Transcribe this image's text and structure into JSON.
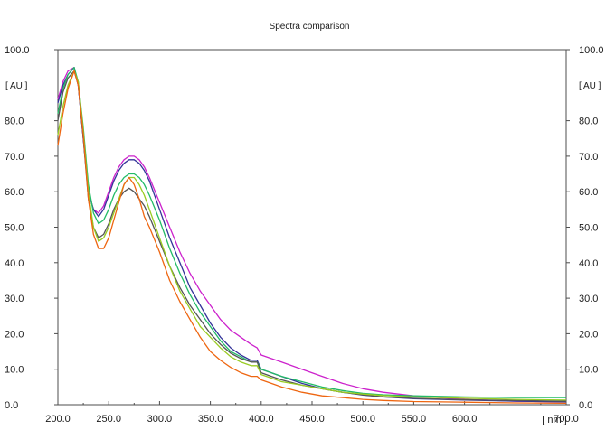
{
  "chart_data": {
    "type": "line",
    "title": "Spectra comparison",
    "xlabel": "[ nm ]",
    "ylabel": "[ AU ]",
    "ylabel_right": "[ AU ]",
    "xlim": [
      200,
      700
    ],
    "ylim": [
      0,
      100
    ],
    "x_ticks": [
      "200.0",
      "250.0",
      "300.0",
      "350.0",
      "400.0",
      "450.0",
      "500.0",
      "550.0",
      "600.0",
      "700.0"
    ],
    "y_ticks": [
      "0.0",
      "10.0",
      "20.0",
      "30.0",
      "40.0",
      "50.0",
      "60.0",
      "70.0",
      "80.0",
      "100.0"
    ],
    "y_ticks_right": [
      "0.0",
      "10.0",
      "20.0",
      "30.0",
      "40.0",
      "50.0",
      "60.0",
      "70.0",
      "80.0",
      "100.0"
    ],
    "grid": false,
    "legend": "none",
    "series": [
      {
        "color": "#cc22cc",
        "points": [
          [
            200,
            86
          ],
          [
            205,
            91
          ],
          [
            210,
            94
          ],
          [
            216,
            95
          ],
          [
            220,
            90
          ],
          [
            225,
            75
          ],
          [
            230,
            60
          ],
          [
            235,
            55
          ],
          [
            240,
            54
          ],
          [
            245,
            56
          ],
          [
            250,
            60
          ],
          [
            255,
            64
          ],
          [
            260,
            67
          ],
          [
            265,
            69
          ],
          [
            270,
            70
          ],
          [
            275,
            70
          ],
          [
            280,
            69
          ],
          [
            285,
            67
          ],
          [
            290,
            64
          ],
          [
            300,
            57
          ],
          [
            310,
            50
          ],
          [
            320,
            43
          ],
          [
            330,
            37
          ],
          [
            340,
            32
          ],
          [
            350,
            28
          ],
          [
            360,
            24
          ],
          [
            370,
            21
          ],
          [
            380,
            19
          ],
          [
            390,
            17
          ],
          [
            396,
            16
          ],
          [
            400,
            14
          ],
          [
            410,
            13
          ],
          [
            420,
            12
          ],
          [
            440,
            10
          ],
          [
            460,
            8
          ],
          [
            480,
            6
          ],
          [
            500,
            4.5
          ],
          [
            520,
            3.5
          ],
          [
            550,
            2.5
          ],
          [
            600,
            1.5
          ],
          [
            650,
            1.0
          ],
          [
            700,
            0.8
          ]
        ]
      },
      {
        "color": "#333399",
        "points": [
          [
            200,
            85
          ],
          [
            205,
            90
          ],
          [
            210,
            93
          ],
          [
            216,
            95
          ],
          [
            220,
            90
          ],
          [
            225,
            75
          ],
          [
            230,
            60
          ],
          [
            235,
            55
          ],
          [
            240,
            53
          ],
          [
            245,
            55
          ],
          [
            250,
            59
          ],
          [
            255,
            63
          ],
          [
            260,
            66
          ],
          [
            265,
            68
          ],
          [
            270,
            69
          ],
          [
            275,
            69
          ],
          [
            280,
            68
          ],
          [
            285,
            66
          ],
          [
            290,
            63
          ],
          [
            300,
            55
          ],
          [
            310,
            47
          ],
          [
            320,
            40
          ],
          [
            330,
            33
          ],
          [
            340,
            28
          ],
          [
            350,
            23
          ],
          [
            360,
            19
          ],
          [
            370,
            16
          ],
          [
            380,
            14
          ],
          [
            390,
            12.5
          ],
          [
            396,
            12.5
          ],
          [
            400,
            10
          ],
          [
            410,
            9
          ],
          [
            420,
            8
          ],
          [
            440,
            6
          ],
          [
            460,
            4.5
          ],
          [
            480,
            3.5
          ],
          [
            500,
            2.7
          ],
          [
            520,
            2.2
          ],
          [
            550,
            1.7
          ],
          [
            600,
            1.3
          ],
          [
            650,
            1.0
          ],
          [
            700,
            0.8
          ]
        ]
      },
      {
        "color": "#22bb66",
        "points": [
          [
            200,
            82
          ],
          [
            205,
            89
          ],
          [
            210,
            93
          ],
          [
            216,
            95
          ],
          [
            220,
            91
          ],
          [
            225,
            78
          ],
          [
            230,
            62
          ],
          [
            235,
            54
          ],
          [
            240,
            51
          ],
          [
            245,
            52
          ],
          [
            250,
            55
          ],
          [
            255,
            59
          ],
          [
            260,
            62
          ],
          [
            265,
            64
          ],
          [
            270,
            65
          ],
          [
            275,
            65
          ],
          [
            280,
            64
          ],
          [
            285,
            62
          ],
          [
            290,
            59
          ],
          [
            300,
            52
          ],
          [
            310,
            44
          ],
          [
            320,
            37
          ],
          [
            330,
            31
          ],
          [
            340,
            26
          ],
          [
            350,
            22
          ],
          [
            360,
            18
          ],
          [
            370,
            15
          ],
          [
            380,
            13.5
          ],
          [
            390,
            12
          ],
          [
            396,
            12
          ],
          [
            400,
            10
          ],
          [
            410,
            9
          ],
          [
            420,
            8
          ],
          [
            440,
            6.5
          ],
          [
            460,
            5
          ],
          [
            480,
            4
          ],
          [
            500,
            3.2
          ],
          [
            520,
            2.8
          ],
          [
            550,
            2.5
          ],
          [
            600,
            2.2
          ],
          [
            650,
            2.0
          ],
          [
            700,
            2.0
          ]
        ]
      },
      {
        "color": "#555555",
        "points": [
          [
            200,
            80
          ],
          [
            205,
            88
          ],
          [
            210,
            92
          ],
          [
            216,
            94
          ],
          [
            220,
            90
          ],
          [
            225,
            75
          ],
          [
            230,
            58
          ],
          [
            235,
            50
          ],
          [
            240,
            47
          ],
          [
            245,
            48
          ],
          [
            250,
            51
          ],
          [
            255,
            55
          ],
          [
            260,
            58
          ],
          [
            265,
            60
          ],
          [
            270,
            61
          ],
          [
            275,
            60
          ],
          [
            280,
            58
          ],
          [
            285,
            56
          ],
          [
            290,
            53
          ],
          [
            300,
            46
          ],
          [
            310,
            39
          ],
          [
            320,
            33
          ],
          [
            330,
            28
          ],
          [
            340,
            24
          ],
          [
            350,
            20
          ],
          [
            360,
            17
          ],
          [
            370,
            14.5
          ],
          [
            380,
            13
          ],
          [
            390,
            12
          ],
          [
            396,
            12
          ],
          [
            400,
            9
          ],
          [
            410,
            8
          ],
          [
            420,
            7
          ],
          [
            440,
            5.5
          ],
          [
            460,
            4.5
          ],
          [
            480,
            3.5
          ],
          [
            500,
            2.8
          ],
          [
            520,
            2.2
          ],
          [
            550,
            1.8
          ],
          [
            600,
            1.4
          ],
          [
            650,
            1.2
          ],
          [
            700,
            1.0
          ]
        ]
      },
      {
        "color": "#99cc22",
        "points": [
          [
            200,
            76
          ],
          [
            205,
            84
          ],
          [
            210,
            90
          ],
          [
            216,
            94
          ],
          [
            220,
            91
          ],
          [
            225,
            77
          ],
          [
            230,
            60
          ],
          [
            235,
            50
          ],
          [
            240,
            46
          ],
          [
            245,
            47
          ],
          [
            250,
            50
          ],
          [
            255,
            54
          ],
          [
            260,
            58
          ],
          [
            265,
            62
          ],
          [
            270,
            64
          ],
          [
            275,
            64
          ],
          [
            280,
            62
          ],
          [
            285,
            59
          ],
          [
            290,
            55
          ],
          [
            300,
            47
          ],
          [
            310,
            39
          ],
          [
            320,
            32
          ],
          [
            330,
            27
          ],
          [
            340,
            22
          ],
          [
            350,
            19
          ],
          [
            360,
            16
          ],
          [
            370,
            13.5
          ],
          [
            380,
            12
          ],
          [
            390,
            11
          ],
          [
            396,
            11
          ],
          [
            400,
            8.5
          ],
          [
            410,
            7.5
          ],
          [
            420,
            6.5
          ],
          [
            440,
            5.5
          ],
          [
            460,
            4.5
          ],
          [
            480,
            3.5
          ],
          [
            500,
            3.0
          ],
          [
            520,
            2.6
          ],
          [
            550,
            2.2
          ],
          [
            600,
            1.8
          ],
          [
            650,
            1.5
          ],
          [
            700,
            1.3
          ]
        ]
      },
      {
        "color": "#ee6611",
        "points": [
          [
            200,
            73
          ],
          [
            205,
            82
          ],
          [
            210,
            89
          ],
          [
            216,
            94
          ],
          [
            220,
            90
          ],
          [
            225,
            76
          ],
          [
            230,
            58
          ],
          [
            235,
            48
          ],
          [
            240,
            44
          ],
          [
            245,
            44
          ],
          [
            250,
            47
          ],
          [
            255,
            52
          ],
          [
            260,
            57
          ],
          [
            265,
            62
          ],
          [
            270,
            64
          ],
          [
            275,
            62
          ],
          [
            280,
            58
          ],
          [
            285,
            53
          ],
          [
            290,
            50
          ],
          [
            300,
            43
          ],
          [
            310,
            35
          ],
          [
            320,
            29
          ],
          [
            330,
            24
          ],
          [
            340,
            19
          ],
          [
            350,
            15
          ],
          [
            360,
            12.5
          ],
          [
            370,
            10.5
          ],
          [
            380,
            9
          ],
          [
            390,
            8
          ],
          [
            396,
            8
          ],
          [
            400,
            7
          ],
          [
            410,
            6
          ],
          [
            420,
            5
          ],
          [
            440,
            3.5
          ],
          [
            460,
            2.5
          ],
          [
            480,
            2.0
          ],
          [
            500,
            1.5
          ],
          [
            520,
            1.2
          ],
          [
            550,
            0.9
          ],
          [
            600,
            0.7
          ],
          [
            650,
            0.5
          ],
          [
            700,
            0.4
          ]
        ]
      }
    ]
  }
}
